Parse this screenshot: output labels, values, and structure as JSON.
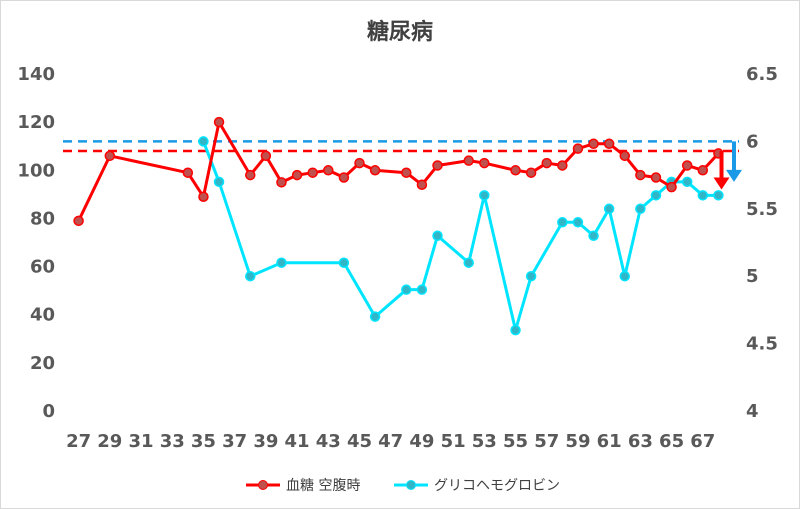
{
  "colors": {
    "glucose": "#ff0000",
    "glucose_marker": "#c0504d",
    "hba1c": "#00e5ff",
    "hba1c_marker": "#31b6c8",
    "ref_glucose": "#ff0000",
    "ref_hba1c": "#1a9ae6",
    "arrow_glucose": "#ff0000",
    "arrow_hba1c": "#1a9ae6",
    "axis_text": "#595959",
    "title": "#404040"
  },
  "chart_data": {
    "type": "line",
    "title": "糖尿病",
    "x_range": [
      26,
      69
    ],
    "x_ticks": [
      27,
      29,
      31,
      33,
      35,
      37,
      39,
      41,
      43,
      45,
      47,
      49,
      51,
      53,
      55,
      57,
      59,
      61,
      63,
      65,
      67
    ],
    "y_left": {
      "range": [
        0,
        140
      ],
      "ticks": [
        0,
        20,
        40,
        60,
        80,
        100,
        120,
        140
      ]
    },
    "y_right": {
      "range": [
        4,
        6.5
      ],
      "ticks": [
        4,
        4.5,
        5,
        5.5,
        6,
        6.5
      ],
      "tick_labels": [
        "4",
        "4.5",
        "5",
        "5.5",
        "6",
        "6.5"
      ]
    },
    "series": [
      {
        "name": "血糖 空腹時",
        "axis": "left",
        "x": [
          27,
          29,
          34,
          35,
          36,
          38,
          39,
          40,
          41,
          42,
          43,
          44,
          45,
          46,
          48,
          49,
          50,
          52,
          53,
          55,
          56,
          57,
          58,
          59,
          60,
          61,
          62,
          63,
          64,
          65,
          66,
          67,
          68
        ],
        "y": [
          79,
          106,
          99,
          89,
          120,
          98,
          106,
          95,
          98,
          99,
          100,
          97,
          103,
          100,
          99,
          94,
          102,
          104,
          103,
          100,
          99,
          103,
          102,
          109,
          111,
          111,
          106,
          98,
          97,
          93,
          102,
          100,
          107
        ]
      },
      {
        "name": "グリコヘモグロビン",
        "axis": "right",
        "x": [
          35,
          36,
          38,
          40,
          44,
          46,
          48,
          49,
          50,
          52,
          53,
          55,
          56,
          58,
          59,
          60,
          61,
          62,
          63,
          64,
          65,
          66,
          67,
          68
        ],
        "y": [
          6.0,
          5.7,
          5.0,
          5.1,
          5.1,
          4.7,
          4.9,
          4.9,
          5.3,
          5.1,
          5.6,
          4.6,
          5.0,
          5.4,
          5.4,
          5.3,
          5.5,
          5.0,
          5.5,
          5.6,
          5.7,
          5.7,
          5.6,
          5.6
        ]
      }
    ],
    "reference_lines": [
      {
        "series": "血糖 空腹時",
        "axis": "left",
        "value": 108
      },
      {
        "series": "グリコヘモグロビン",
        "axis": "right",
        "value": 6.0
      }
    ],
    "trend_arrows": [
      {
        "series": "グリコヘモグロビン",
        "axis": "right",
        "x": 69,
        "from": 6.0,
        "to": 5.7
      },
      {
        "series": "血糖 空腹時",
        "axis": "left",
        "x": 68.2,
        "from": 108,
        "to": 92
      }
    ],
    "legend": {
      "placement": "bottom",
      "entries": [
        "血糖 空腹時",
        "グリコヘモグロビン"
      ]
    }
  }
}
